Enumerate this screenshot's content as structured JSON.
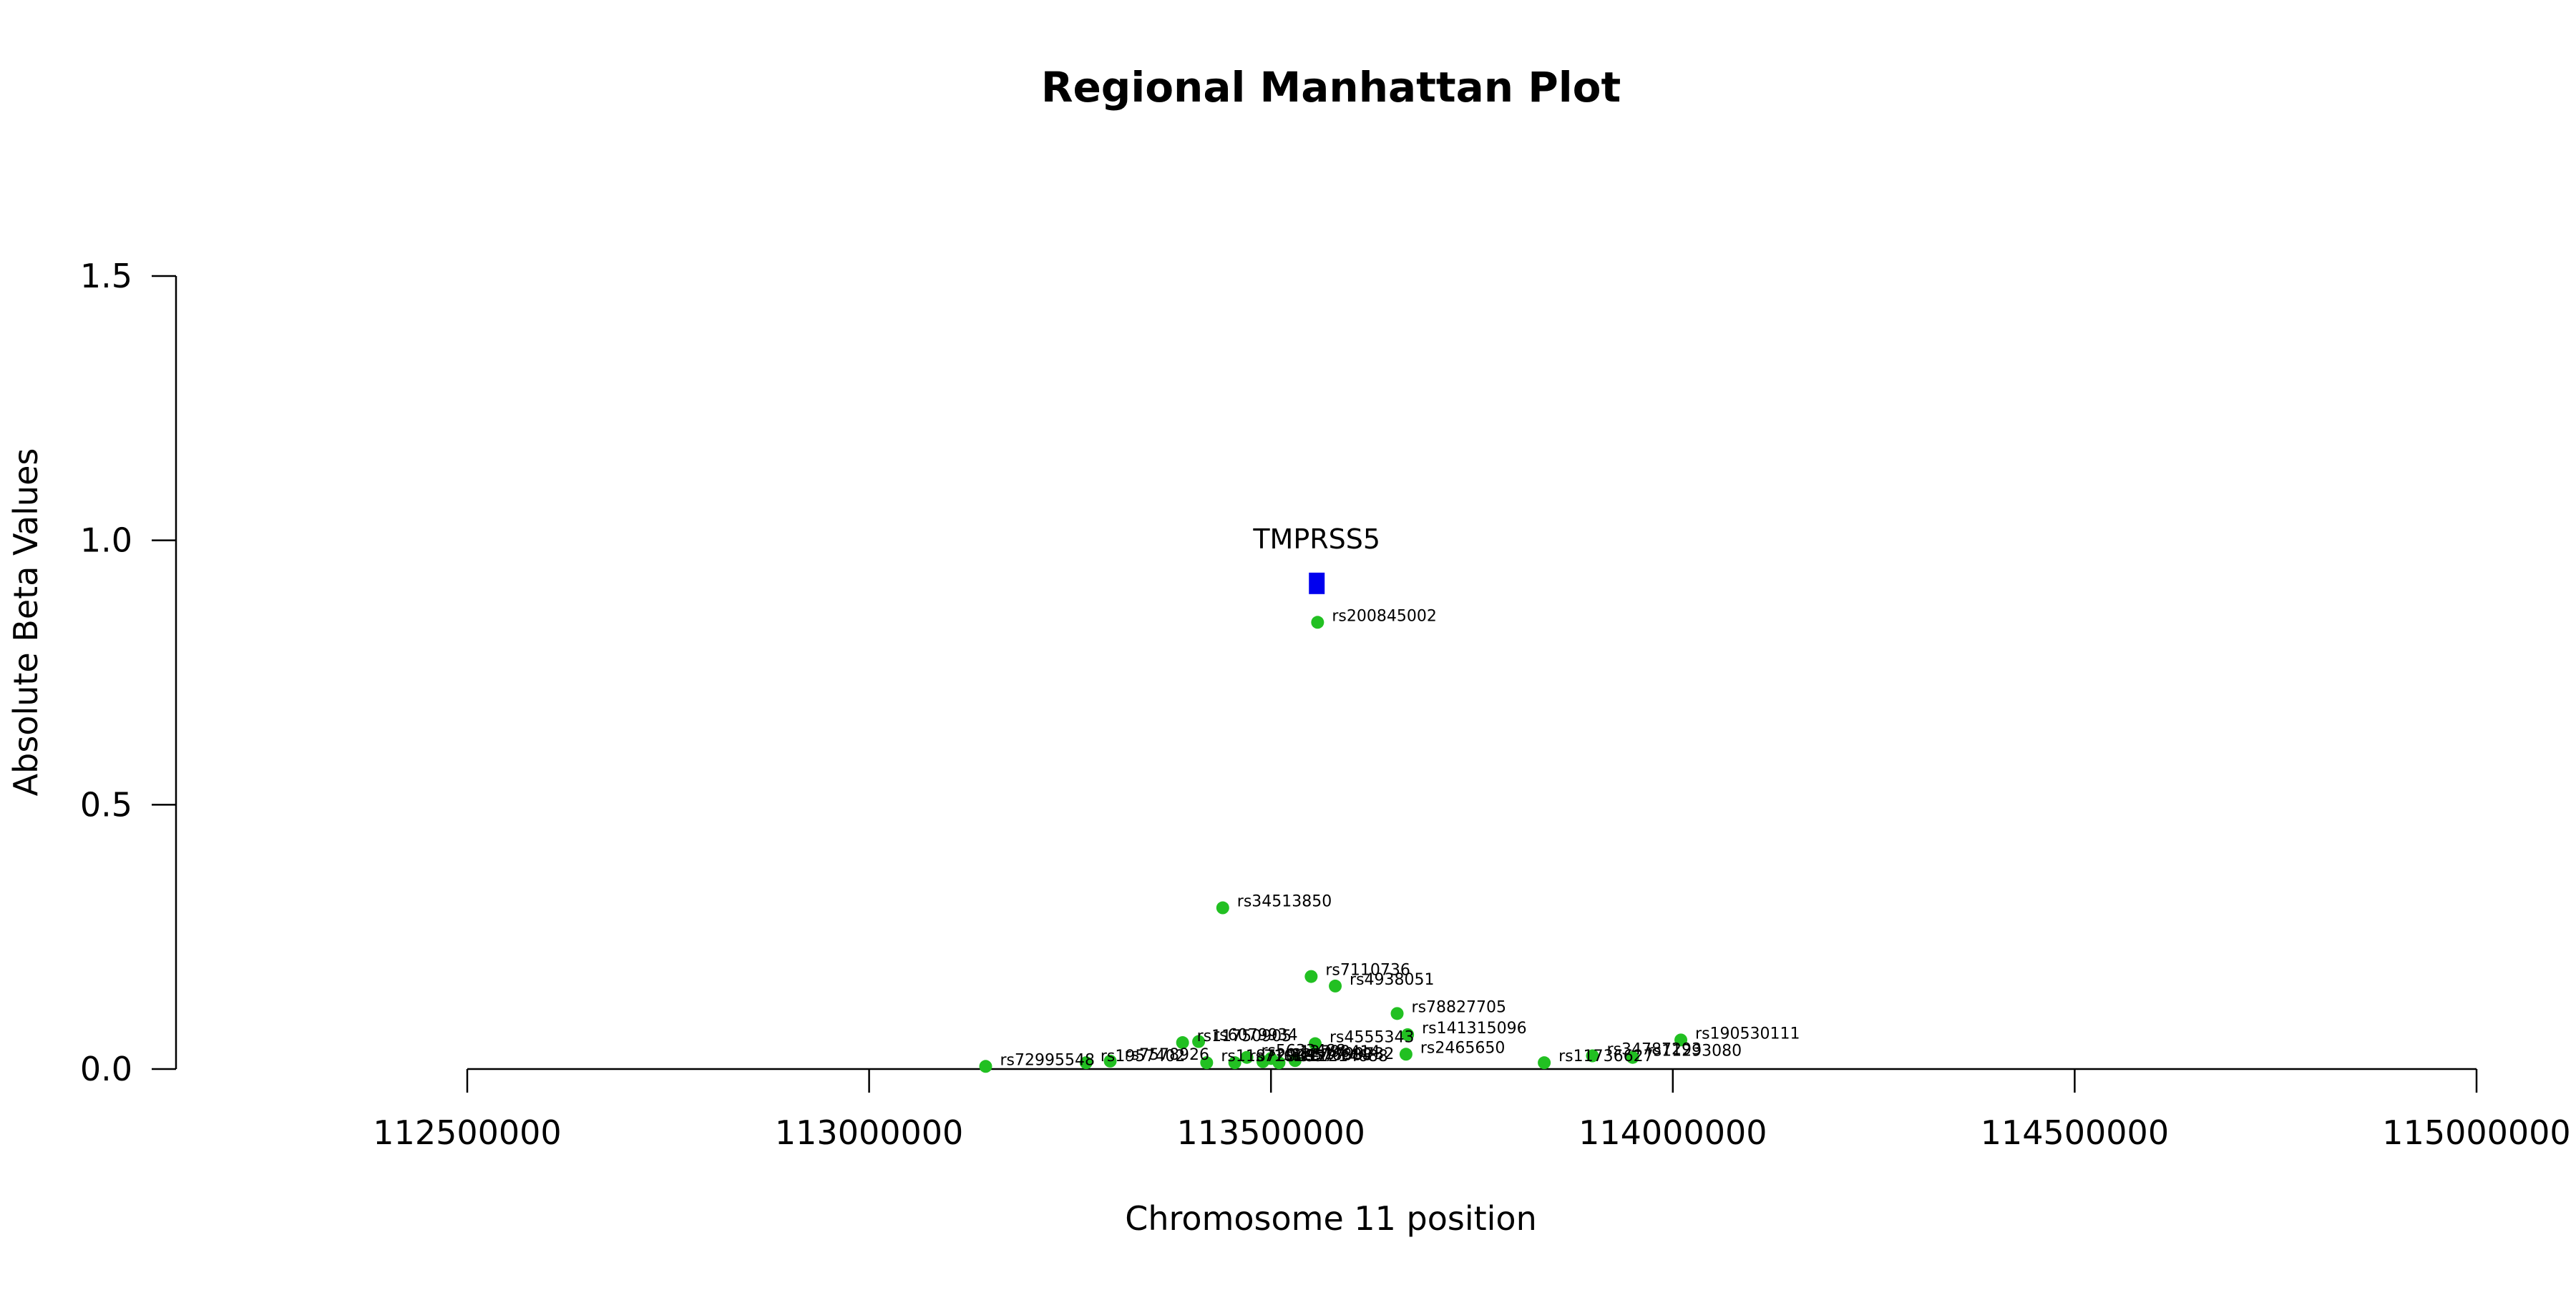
{
  "chart_data": {
    "type": "scatter",
    "title": "Regional Manhattan Plot",
    "xlabel": "Chromosome 11 position",
    "ylabel": "Absolute Beta Values",
    "xlim": [
      112500000,
      115000000
    ],
    "ylim": [
      0,
      1.5
    ],
    "x_ticks": [
      112500000,
      113000000,
      113500000,
      114000000,
      114500000,
      115000000
    ],
    "y_ticks": [
      0.0,
      0.5,
      1.0,
      1.5
    ],
    "x_tick_labels": [
      "112500000",
      "113000000",
      "113500000",
      "114000000",
      "114500000",
      "115000000"
    ],
    "y_tick_labels": [
      "0.0",
      "0.5",
      "1.0",
      "1.5"
    ],
    "grid": false,
    "colors": {
      "snp": "#22c022",
      "gene": "#0000ee",
      "axis": "#000000"
    },
    "gene_markers": [
      {
        "label": "TMPRSS5",
        "x": 113557000,
        "y": 0.92
      }
    ],
    "points": [
      {
        "label": "rs200845002",
        "x": 113558000,
        "y": 0.845
      },
      {
        "label": "rs34513850",
        "x": 113440000,
        "y": 0.305
      },
      {
        "label": "rs7110736",
        "x": 113550000,
        "y": 0.175
      },
      {
        "label": "rs4938051",
        "x": 113580000,
        "y": 0.157
      },
      {
        "label": "rs78827705",
        "x": 113657000,
        "y": 0.105
      },
      {
        "label": "rs141315096",
        "x": 113670000,
        "y": 0.065
      },
      {
        "label": "rs190530111",
        "x": 114010000,
        "y": 0.055
      },
      {
        "label": "rs4555343",
        "x": 113555000,
        "y": 0.048
      },
      {
        "label": "rs6079934",
        "x": 113410000,
        "y": 0.052
      },
      {
        "label": "rs11750905",
        "x": 113390000,
        "y": 0.05
      },
      {
        "label": "rs2465650",
        "x": 113668000,
        "y": 0.028
      },
      {
        "label": "rs34787293",
        "x": 113900000,
        "y": 0.025
      },
      {
        "label": "rs11293080",
        "x": 113950000,
        "y": 0.022
      },
      {
        "label": "rs11736627",
        "x": 113840000,
        "y": 0.012
      },
      {
        "label": "rs72995548",
        "x": 113145000,
        "y": 0.005
      },
      {
        "label": "rs1957402",
        "x": 113270000,
        "y": 0.012
      },
      {
        "label": "rs7578926",
        "x": 113300000,
        "y": 0.015
      },
      {
        "label": "rs11872049",
        "x": 113420000,
        "y": 0.012
      },
      {
        "label": "rs5633488",
        "x": 113470000,
        "y": 0.022
      },
      {
        "label": "rs12798414",
        "x": 113500000,
        "y": 0.02
      },
      {
        "label": "rs7101657",
        "x": 113455000,
        "y": 0.012
      },
      {
        "label": "rs12576888",
        "x": 113490000,
        "y": 0.014
      },
      {
        "label": "rs11214688",
        "x": 113510000,
        "y": 0.012
      },
      {
        "label": "rs1799732",
        "x": 113530000,
        "y": 0.016
      }
    ]
  }
}
